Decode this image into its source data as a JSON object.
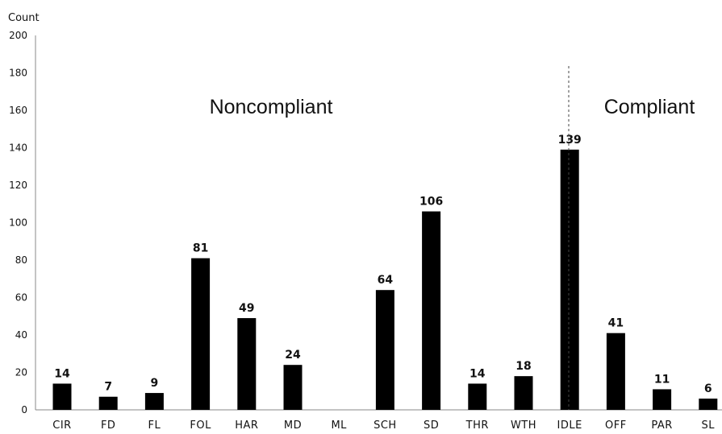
{
  "chart_data": {
    "type": "bar",
    "ylabel": "Count",
    "ylim": [
      0,
      200
    ],
    "yticks": [
      "0",
      "20",
      "40",
      "60",
      "80",
      "100",
      "120",
      "140",
      "160",
      "180",
      "200"
    ],
    "categories": [
      "CIR",
      "FD",
      "FL",
      "FOL",
      "HAR",
      "MD",
      "ML",
      "SCH",
      "SD",
      "THR",
      "WTH",
      "IDLE",
      "OFF",
      "PAR",
      "SL"
    ],
    "values": [
      14,
      7,
      9,
      81,
      49,
      24,
      0,
      64,
      106,
      14,
      18,
      139,
      41,
      11,
      6
    ],
    "data_labels": [
      "14",
      "7",
      "9",
      "81",
      "49",
      "24",
      "",
      "64",
      "106",
      "14",
      "18",
      "139",
      "41",
      "11",
      "6"
    ],
    "bar_color": "#000000",
    "groups": [
      {
        "label": "Noncompliant",
        "categories": [
          "CIR",
          "FD",
          "FL",
          "FOL",
          "HAR",
          "MD",
          "ML",
          "SCH",
          "SD",
          "THR",
          "WTH"
        ]
      },
      {
        "label": "Compliant",
        "categories": [
          "IDLE",
          "OFF",
          "PAR",
          "SL"
        ]
      }
    ],
    "divider": "dashed line between WTH and IDLE",
    "grid": false
  }
}
